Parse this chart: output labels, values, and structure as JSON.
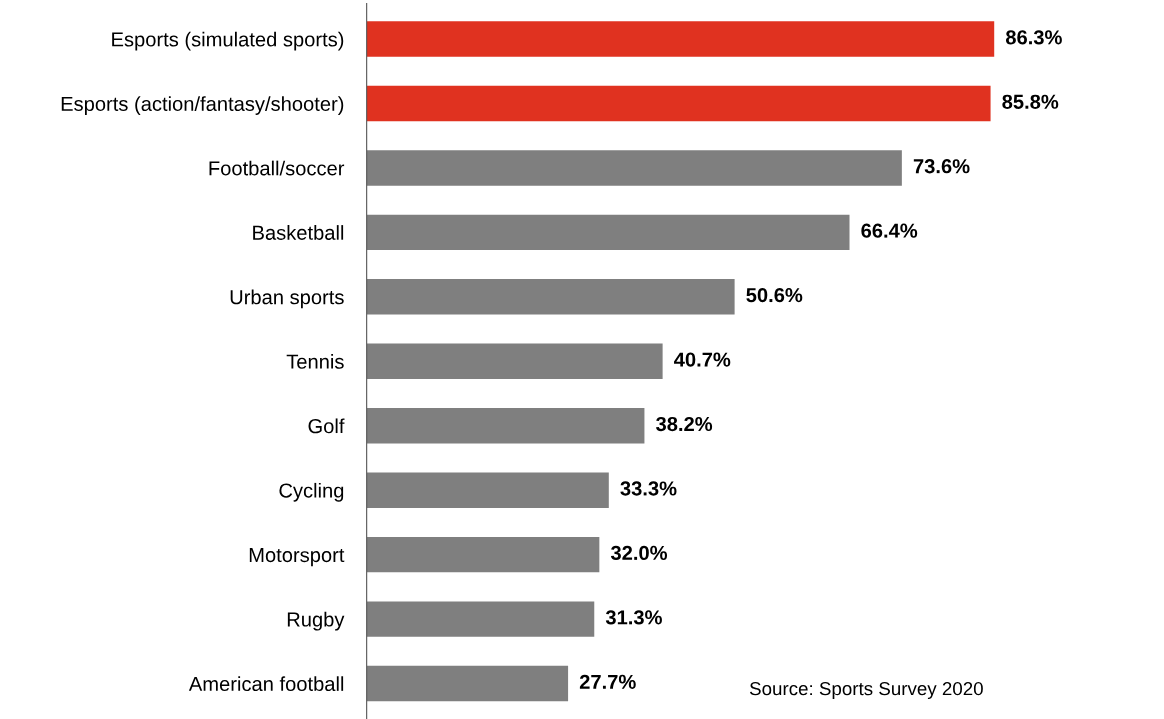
{
  "chart_data": {
    "type": "bar",
    "orientation": "horizontal",
    "categories": [
      "Esports (simulated sports)",
      "Esports (action/fantasy/shooter)",
      "Football/soccer",
      "Basketball",
      "Urban sports",
      "Tennis",
      "Golf",
      "Cycling",
      "Motorsport",
      "Rugby",
      "American football"
    ],
    "values": [
      86.3,
      85.8,
      73.6,
      66.4,
      50.6,
      40.7,
      38.2,
      33.3,
      32.0,
      31.3,
      27.7
    ],
    "value_labels": [
      "86.3%",
      "85.8%",
      "73.6%",
      "66.4%",
      "50.6%",
      "40.7%",
      "38.2%",
      "33.3%",
      "32.0%",
      "31.3%",
      "27.7%"
    ],
    "colors": [
      "#e03220",
      "#e03220",
      "#7f7f7f",
      "#7f7f7f",
      "#7f7f7f",
      "#7f7f7f",
      "#7f7f7f",
      "#7f7f7f",
      "#7f7f7f",
      "#7f7f7f",
      "#7f7f7f"
    ],
    "annotations": [
      "Source: Sports Survey 2020"
    ]
  }
}
